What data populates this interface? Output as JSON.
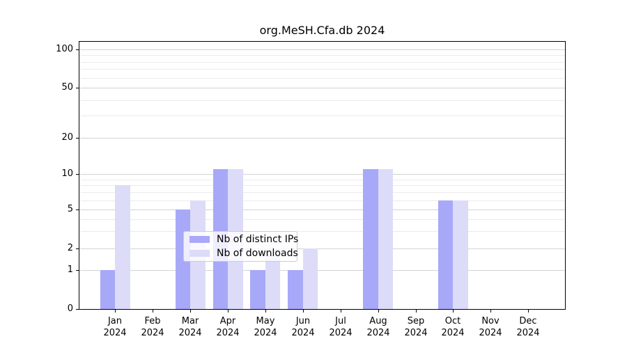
{
  "title": "org.MeSH.Cfa.db 2024",
  "chart_data": {
    "type": "bar",
    "title": "org.MeSH.Cfa.db 2024",
    "categories": [
      "Jan",
      "Feb",
      "Mar",
      "Apr",
      "May",
      "Jun",
      "Jul",
      "Aug",
      "Sep",
      "Oct",
      "Nov",
      "Dec"
    ],
    "x_year_label": "2024",
    "series": [
      {
        "name": "Nb of distinct IPs",
        "color": "#a8a8f8",
        "values": [
          1,
          0,
          5,
          11,
          1,
          1,
          0,
          11,
          0,
          6,
          0,
          0
        ]
      },
      {
        "name": "Nb of downloads",
        "color": "#dcdcf9",
        "values": [
          8,
          0,
          6,
          11,
          2,
          2,
          0,
          11,
          0,
          6,
          0,
          0
        ]
      }
    ],
    "xlabel": "",
    "ylabel": "",
    "yscale": "log-like",
    "ylim": [
      0,
      110
    ],
    "yticks": [
      0,
      1,
      2,
      5,
      10,
      20,
      50,
      100
    ],
    "minor_gridlines": [
      3,
      4,
      6,
      7,
      8,
      9,
      30,
      40,
      60,
      70,
      80,
      90
    ],
    "grid": true,
    "legend_position": "inside-bottom-center",
    "colors": {
      "grid_major": "#d3d3d3",
      "grid_minor": "#ebebeb",
      "axis": "#000000",
      "legend_border": "#cccccc",
      "text": "#000000"
    }
  }
}
